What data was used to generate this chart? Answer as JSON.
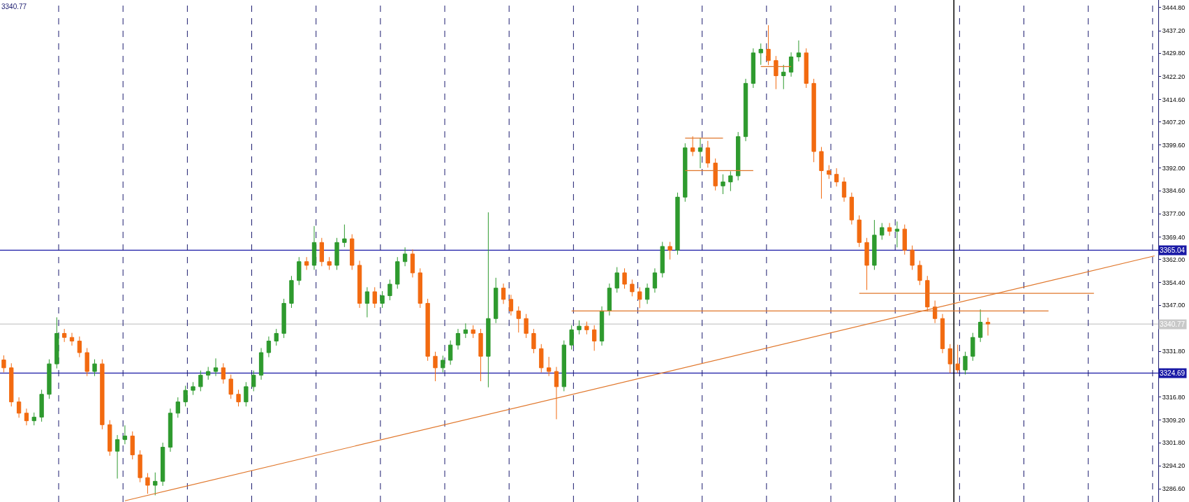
{
  "chart_data": {
    "type": "candlestick",
    "categories": [
      null,
      null,
      null,
      null,
      null,
      null,
      null,
      null,
      null,
      null,
      null,
      null,
      null,
      null,
      null,
      null,
      null,
      null,
      null,
      null,
      null,
      null,
      null,
      null,
      null,
      null,
      null,
      null,
      null,
      null,
      null,
      null,
      null,
      null,
      null,
      null,
      null,
      null,
      null,
      null,
      null,
      null,
      null,
      null,
      null,
      null,
      null,
      null,
      null,
      null,
      null,
      null,
      null,
      null,
      null,
      null,
      null,
      null,
      null,
      null,
      null,
      null,
      null,
      null,
      null,
      null,
      null,
      null,
      null,
      null,
      null,
      null,
      null,
      null,
      null,
      null,
      null,
      null,
      null,
      null,
      null,
      null,
      null,
      null,
      null,
      null,
      null,
      null,
      null,
      null,
      null,
      null,
      null,
      null,
      null,
      null,
      null,
      null,
      null,
      null,
      null,
      null,
      null,
      null,
      null,
      null,
      null,
      null,
      null,
      null,
      null,
      null,
      null,
      null,
      null,
      null,
      null,
      null,
      null,
      null,
      null,
      null,
      null,
      null,
      null,
      null,
      null,
      null,
      null,
      null,
      null,
      null,
      null,
      null,
      null,
      null,
      null,
      null,
      null,
      null,
      null,
      null,
      null,
      null,
      null,
      null,
      null,
      null,
      null,
      null,
      null,
      null,
      null
    ],
    "colors": [
      "#f26a10",
      "#f26a10",
      "#f26a10",
      "#f26a10",
      "#2e9a2e",
      "#2e9a2e",
      "#2e9a2e",
      "#2e9a2e",
      "#f26a10",
      "#f26a10",
      "#f26a10",
      "#f26a10",
      "#2e9a2e",
      "#f26a10",
      "#f26a10",
      "#2e9a2e",
      "#2e9a2e",
      "#f26a10",
      "#f26a10",
      "#f26a10",
      "#2e9a2e",
      "#2e9a2e",
      "#2e9a2e",
      "#2e9a2e",
      "#2e9a2e",
      "#2e9a2e",
      "#2e9a2e",
      "#2e9a2e",
      "#2e9a2e",
      "#f26a10",
      "#f26a10",
      "#f26a10",
      "#2e9a2e",
      "#2e9a2e",
      "#2e9a2e",
      "#2e9a2e",
      "#2e9a2e",
      "#2e9a2e",
      "#2e9a2e",
      "#2e9a2e",
      "#f26a10",
      "#2e9a2e",
      "#f26a10",
      "#f26a10",
      "#2e9a2e",
      "#2e9a2e",
      "#f26a10",
      "#f26a10",
      "#2e9a2e",
      "#f26a10",
      "#2e9a2e",
      "#2e9a2e",
      "#2e9a2e",
      "#2e9a2e",
      "#f26a10",
      "#f26a10",
      "#f26a10",
      "#f26a10",
      "#2e9a2e",
      "#2e9a2e",
      "#2e9a2e",
      "#2e9a2e",
      "#f26a10",
      "#f26a10",
      "#2e9a2e",
      "#2e9a2e",
      "#f26a10",
      "#f26a10",
      "#f26a10",
      "#f26a10",
      "#f26a10",
      "#f26a10",
      "#f26a10",
      "#f26a10",
      "#2e9a2e",
      "#2e9a2e",
      "#2e9a2e",
      "#f26a10",
      "#f26a10",
      "#2e9a2e",
      "#2e9a2e",
      "#2e9a2e",
      "#f26a10",
      "#f26a10",
      "#f26a10",
      "#2e9a2e",
      "#2e9a2e",
      "#2e9a2e",
      "#f26a10",
      "#2e9a2e",
      "#2e9a2e",
      "#f26a10",
      "#2e9a2e",
      "#f26a10",
      "#f26a10",
      "#2e9a2e",
      "#2e9a2e",
      "#2e9a2e",
      "#2e9a2e",
      "#2e9a2e",
      "#2e9a2e",
      "#f26a10",
      "#f26a10",
      "#2e9a2e",
      "#2e9a2e",
      "#2e9a2e",
      "#f26a10",
      "#f26a10",
      "#f26a10",
      "#f26a10",
      "#f26a10",
      "#f26a10",
      "#f26a10",
      "#f26a10",
      "#f26a10",
      "#2e9a2e",
      "#2e9a2e",
      "#f26a10",
      "#2e9a2e",
      "#f26a10",
      "#f26a10",
      "#f26a10",
      "#f26a10",
      "#f26a10",
      "#f26a10",
      "#f26a10",
      "#f26a10",
      "#2e9a2e",
      "#2e9a2e",
      "#2e9a2e",
      "#f26a10",
      null,
      null,
      null,
      null,
      null,
      null,
      null,
      null,
      null,
      null,
      null,
      null,
      null,
      null,
      null,
      null,
      null,
      null,
      null,
      null,
      null,
      null
    ],
    "ohlc": [
      [
        3329.0,
        3330.5,
        3324.9,
        3326.4
      ],
      [
        3326.4,
        3327.9,
        3313.7,
        3315.2
      ],
      [
        3315.2,
        3316.7,
        3310.0,
        3311.5
      ],
      [
        3311.5,
        3313.0,
        3307.5,
        3309.0
      ],
      [
        3309.0,
        3311.7,
        3307.5,
        3310.2
      ],
      [
        3310.2,
        3319.2,
        3308.7,
        3317.7
      ],
      [
        3317.7,
        3329.2,
        3316.2,
        3327.7
      ],
      [
        3327.7,
        3343.0,
        3326.2,
        3337.7
      ],
      [
        3337.7,
        3339.2,
        3334.9,
        3336.4
      ],
      [
        3336.4,
        3337.9,
        3333.7,
        3335.2
      ],
      [
        3335.2,
        3336.7,
        3329.9,
        3331.4
      ],
      [
        3331.4,
        3332.9,
        3323.7,
        3325.2
      ],
      [
        3325.2,
        3329.2,
        3323.7,
        3327.7
      ],
      [
        3327.7,
        3329.2,
        3306.2,
        3307.7
      ],
      [
        3307.7,
        3309.2,
        3297.5,
        3299.0
      ],
      [
        3299.0,
        3304.3,
        3290.0,
        3302.8
      ],
      [
        3302.8,
        3307.5,
        3301.3,
        3304.0
      ],
      [
        3304.0,
        3305.5,
        3296.3,
        3297.8
      ],
      [
        3297.8,
        3299.3,
        3288.8,
        3290.3
      ],
      [
        3290.3,
        3291.8,
        3285.0,
        3287.8
      ],
      [
        3287.8,
        3292.0,
        3284.5,
        3289.1
      ],
      [
        3289.1,
        3301.8,
        3287.6,
        3300.3
      ],
      [
        3300.3,
        3313.0,
        3298.8,
        3311.5
      ],
      [
        3311.5,
        3316.7,
        3310.0,
        3315.2
      ],
      [
        3315.2,
        3320.5,
        3313.7,
        3319.0
      ],
      [
        3319.0,
        3321.7,
        3317.5,
        3320.2
      ],
      [
        3320.2,
        3325.5,
        3318.7,
        3324.0
      ],
      [
        3324.0,
        3326.7,
        3322.5,
        3325.2
      ],
      [
        3325.2,
        3329.5,
        3323.7,
        3326.4
      ],
      [
        3326.4,
        3327.9,
        3321.2,
        3322.7
      ],
      [
        3322.7,
        3324.2,
        3316.2,
        3317.7
      ],
      [
        3317.7,
        3319.2,
        3313.7,
        3315.2
      ],
      [
        3315.2,
        3321.7,
        3313.7,
        3320.2
      ],
      [
        3320.2,
        3325.5,
        3318.7,
        3324.0
      ],
      [
        3324.0,
        3332.9,
        3322.5,
        3331.4
      ],
      [
        3331.4,
        3336.7,
        3329.9,
        3335.2
      ],
      [
        3335.2,
        3339.2,
        3333.7,
        3337.7
      ],
      [
        3337.7,
        3349.1,
        3336.2,
        3347.6
      ],
      [
        3347.6,
        3356.6,
        3346.1,
        3355.1
      ],
      [
        3355.1,
        3362.8,
        3353.6,
        3361.3
      ],
      [
        3361.3,
        3362.8,
        3358.6,
        3360.1
      ],
      [
        3360.1,
        3373.0,
        3358.6,
        3367.6
      ],
      [
        3367.6,
        3369.1,
        3359.8,
        3361.3
      ],
      [
        3361.3,
        3362.8,
        3358.6,
        3360.1
      ],
      [
        3360.1,
        3369.1,
        3358.6,
        3367.6
      ],
      [
        3367.6,
        3373.5,
        3366.1,
        3368.8
      ],
      [
        3368.8,
        3370.3,
        3358.6,
        3360.1
      ],
      [
        3360.1,
        3361.6,
        3346.1,
        3347.6
      ],
      [
        3347.6,
        3352.9,
        3343.0,
        3351.4
      ],
      [
        3351.4,
        3352.9,
        3346.1,
        3347.6
      ],
      [
        3347.6,
        3351.6,
        3346.1,
        3350.1
      ],
      [
        3350.1,
        3355.4,
        3348.6,
        3353.9
      ],
      [
        3353.9,
        3362.8,
        3352.4,
        3361.3
      ],
      [
        3361.3,
        3366.0,
        3359.8,
        3363.8
      ],
      [
        3363.8,
        3365.3,
        3356.1,
        3357.6
      ],
      [
        3357.6,
        3359.1,
        3346.1,
        3347.6
      ],
      [
        3347.6,
        3349.1,
        3328.7,
        3330.2
      ],
      [
        3330.2,
        3331.7,
        3322.0,
        3326.4
      ],
      [
        3326.4,
        3330.4,
        3324.9,
        3328.9
      ],
      [
        3328.9,
        3335.4,
        3327.4,
        3333.9
      ],
      [
        3333.9,
        3339.2,
        3332.4,
        3337.7
      ],
      [
        3337.7,
        3341.0,
        3336.2,
        3338.9
      ],
      [
        3338.9,
        3340.4,
        3336.2,
        3337.7
      ],
      [
        3337.7,
        3339.2,
        3322.0,
        3330.2
      ],
      [
        3330.2,
        3377.5,
        3320.0,
        3342.6
      ],
      [
        3342.6,
        3356.0,
        3341.1,
        3352.6
      ],
      [
        3352.6,
        3354.1,
        3347.4,
        3348.9
      ],
      [
        3348.9,
        3350.4,
        3343.6,
        3345.1
      ],
      [
        3345.1,
        3346.6,
        3338.0,
        3342.6
      ],
      [
        3342.6,
        3344.1,
        3336.2,
        3337.7
      ],
      [
        3337.7,
        3339.2,
        3331.2,
        3332.7
      ],
      [
        3332.7,
        3334.2,
        3324.9,
        3326.4
      ],
      [
        3326.4,
        3330.0,
        3323.7,
        3325.2
      ],
      [
        3325.2,
        3326.7,
        3309.5,
        3320.2
      ],
      [
        3320.2,
        3335.4,
        3318.7,
        3333.9
      ],
      [
        3333.9,
        3340.4,
        3332.4,
        3338.9
      ],
      [
        3338.9,
        3342.0,
        3337.4,
        3340.1
      ],
      [
        3340.1,
        3341.6,
        3337.4,
        3338.9
      ],
      [
        3338.9,
        3340.4,
        3332.0,
        3335.2
      ],
      [
        3335.2,
        3346.6,
        3333.7,
        3345.1
      ],
      [
        3345.1,
        3354.1,
        3343.6,
        3352.6
      ],
      [
        3352.6,
        3359.5,
        3351.1,
        3357.6
      ],
      [
        3357.6,
        3359.1,
        3352.4,
        3353.9
      ],
      [
        3353.9,
        3355.4,
        3349.9,
        3351.4
      ],
      [
        3351.4,
        3352.9,
        3346.0,
        3348.9
      ],
      [
        3348.9,
        3354.1,
        3347.4,
        3352.6
      ],
      [
        3352.6,
        3359.1,
        3351.1,
        3357.6
      ],
      [
        3357.6,
        3367.8,
        3356.1,
        3366.3
      ],
      [
        3366.3,
        3367.8,
        3362.0,
        3365.1
      ],
      [
        3365.1,
        3384.0,
        3363.6,
        3382.5
      ],
      [
        3382.5,
        3400.2,
        3381.0,
        3398.7
      ],
      [
        3398.7,
        3402.5,
        3396.0,
        3397.5
      ],
      [
        3397.5,
        3402.0,
        3392.0,
        3398.7
      ],
      [
        3398.7,
        3401.0,
        3392.2,
        3393.7
      ],
      [
        3393.7,
        3395.2,
        3384.7,
        3386.2
      ],
      [
        3386.2,
        3390.0,
        3383.5,
        3387.5
      ],
      [
        3387.5,
        3391.0,
        3384.5,
        3389.5
      ],
      [
        3389.5,
        3403.9,
        3388.0,
        3402.4
      ],
      [
        3402.4,
        3421.4,
        3400.9,
        3419.9
      ],
      [
        3419.9,
        3431.4,
        3418.4,
        3429.9
      ],
      [
        3429.9,
        3433.0,
        3426.0,
        3431.1
      ],
      [
        3431.1,
        3439.0,
        3425.9,
        3427.4
      ],
      [
        3427.4,
        3428.9,
        3418.0,
        3422.4
      ],
      [
        3422.4,
        3426.0,
        3418.0,
        3423.6
      ],
      [
        3423.6,
        3430.1,
        3422.1,
        3428.6
      ],
      [
        3428.6,
        3434.0,
        3427.1,
        3429.9
      ],
      [
        3429.9,
        3431.4,
        3418.4,
        3419.9
      ],
      [
        3419.9,
        3421.4,
        3394.0,
        3397.5
      ],
      [
        3397.5,
        3399.0,
        3382.0,
        3391.2
      ],
      [
        3391.2,
        3393.0,
        3388.5,
        3390.0
      ],
      [
        3390.0,
        3392.0,
        3386.0,
        3387.5
      ],
      [
        3387.5,
        3389.0,
        3381.0,
        3382.5
      ],
      [
        3382.5,
        3384.0,
        3373.5,
        3375.0
      ],
      [
        3375.0,
        3376.5,
        3366.1,
        3367.6
      ],
      [
        3367.6,
        3369.1,
        3352.0,
        3360.1
      ],
      [
        3360.1,
        3375.0,
        3358.6,
        3370.0
      ],
      [
        3370.0,
        3374.0,
        3368.5,
        3372.5
      ],
      [
        3372.5,
        3374.0,
        3369.8,
        3371.3
      ],
      [
        3371.3,
        3374.5,
        3366.0,
        3372.0
      ],
      [
        3372.0,
        3373.5,
        3363.6,
        3365.1
      ],
      [
        3365.1,
        3366.6,
        3358.6,
        3360.1
      ],
      [
        3360.1,
        3361.6,
        3353.6,
        3355.1
      ],
      [
        3355.1,
        3356.6,
        3344.9,
        3346.4
      ],
      [
        3346.4,
        3348.5,
        3341.1,
        3342.6
      ],
      [
        3342.6,
        3344.1,
        3331.2,
        3332.7
      ],
      [
        3332.7,
        3334.2,
        3324.7,
        3327.7
      ],
      [
        3327.7,
        3334.0,
        3324.7,
        3325.7
      ],
      [
        3325.7,
        3331.7,
        3324.2,
        3330.2
      ],
      [
        3330.2,
        3337.9,
        3328.7,
        3336.4
      ],
      [
        3336.4,
        3345.6,
        3334.9,
        3341.4
      ],
      [
        3341.4,
        3342.9,
        3337.0,
        3340.8
      ],
      null,
      null,
      null,
      null,
      null,
      null,
      null,
      null,
      null,
      null,
      null,
      null,
      null,
      null,
      null,
      null,
      null,
      null,
      null,
      null,
      null,
      null
    ],
    "series": [
      {
        "type": "line",
        "color": "#e0762a",
        "values": [
          null,
          null,
          null,
          null,
          null,
          null,
          null,
          null,
          null,
          null,
          null,
          null,
          null,
          null,
          null,
          null,
          3282.7,
          null,
          null,
          null,
          null,
          null,
          null,
          null,
          null,
          null,
          null,
          null,
          null,
          null,
          null,
          null,
          null,
          null,
          null,
          null,
          null,
          null,
          null,
          null,
          null,
          null,
          null,
          null,
          null,
          null,
          null,
          null,
          null,
          null,
          null,
          null,
          null,
          null,
          null,
          null,
          null,
          null,
          null,
          null,
          null,
          null,
          null,
          null,
          null,
          null,
          null,
          null,
          null,
          null,
          null,
          null,
          null,
          null,
          null,
          null,
          null,
          null,
          null,
          null,
          null,
          null,
          null,
          null,
          null,
          null,
          null,
          null,
          null,
          null,
          null,
          null,
          null,
          null,
          null,
          null,
          null,
          null,
          null,
          null,
          null,
          null,
          null,
          null,
          null,
          null,
          null,
          null,
          null,
          null,
          null,
          null,
          null,
          null,
          null,
          null,
          null,
          null,
          null,
          null,
          null,
          null,
          null,
          null,
          null,
          null,
          null,
          null,
          null,
          null,
          null,
          null,
          null,
          null,
          null,
          null,
          null,
          null,
          null,
          null,
          null,
          null,
          null,
          null,
          null,
          null,
          null,
          null,
          null,
          null,
          null,
          null,
          3363.2
        ]
      },
      {
        "type": "line",
        "color": "#e0762a",
        "values": [
          null,
          null,
          null,
          null,
          null,
          null,
          null,
          null,
          null,
          null,
          null,
          null,
          null,
          null,
          null,
          null,
          null,
          null,
          null,
          null,
          null,
          null,
          null,
          null,
          null,
          null,
          null,
          null,
          null,
          null,
          null,
          null,
          null,
          null,
          null,
          null,
          null,
          null,
          null,
          null,
          null,
          null,
          null,
          null,
          null,
          null,
          null,
          null,
          null,
          null,
          null,
          null,
          null,
          null,
          null,
          null,
          null,
          null,
          null,
          null,
          null,
          null,
          null,
          null,
          null,
          null,
          null,
          null,
          null,
          null,
          null,
          null,
          null,
          null,
          null,
          3345.1,
          null,
          null,
          null,
          null,
          null,
          null,
          null,
          null,
          null,
          null,
          null,
          null,
          null,
          null,
          null,
          null,
          null,
          null,
          null,
          null,
          null,
          null,
          null,
          null,
          null,
          null,
          null,
          null,
          null,
          null,
          null,
          null,
          null,
          null,
          null,
          null,
          null,
          null,
          null,
          null,
          null,
          null,
          null,
          null,
          null,
          null,
          null,
          null,
          null,
          null,
          null,
          null,
          null,
          null,
          null,
          null,
          null,
          null,
          null,
          null,
          null,
          null,
          3345.1,
          null,
          null,
          null,
          null,
          null,
          null,
          null,
          null,
          null,
          null,
          null,
          null,
          null,
          null
        ]
      },
      {
        "type": "line",
        "color": "#e0762a",
        "values": [
          null,
          null,
          null,
          null,
          null,
          null,
          null,
          null,
          null,
          null,
          null,
          null,
          null,
          null,
          null,
          null,
          null,
          null,
          null,
          null,
          null,
          null,
          null,
          null,
          null,
          null,
          null,
          null,
          null,
          null,
          null,
          null,
          null,
          null,
          null,
          null,
          null,
          null,
          null,
          null,
          null,
          null,
          null,
          null,
          null,
          null,
          null,
          null,
          null,
          null,
          null,
          null,
          null,
          null,
          null,
          null,
          null,
          null,
          null,
          null,
          null,
          null,
          null,
          null,
          null,
          null,
          null,
          null,
          null,
          null,
          null,
          null,
          null,
          null,
          null,
          null,
          null,
          null,
          null,
          null,
          null,
          null,
          null,
          null,
          null,
          null,
          null,
          null,
          null,
          null,
          null,
          null,
          null,
          null,
          null,
          null,
          null,
          null,
          null,
          null,
          null,
          null,
          null,
          null,
          null,
          null,
          null,
          null,
          null,
          null,
          null,
          null,
          null,
          3350.9,
          null,
          null,
          null,
          null,
          null,
          null,
          null,
          null,
          null,
          null,
          null,
          null,
          null,
          null,
          null,
          null,
          null,
          null,
          null,
          null,
          null,
          null,
          null,
          null,
          null,
          null,
          null,
          null,
          null,
          null,
          3350.9,
          null,
          null,
          null,
          null,
          null,
          null,
          null,
          null
        ]
      },
      {
        "type": "line",
        "color": "#e0762a",
        "values": [
          null,
          null,
          null,
          null,
          null,
          null,
          null,
          null,
          null,
          null,
          null,
          null,
          null,
          null,
          null,
          null,
          null,
          null,
          null,
          null,
          null,
          null,
          null,
          null,
          null,
          null,
          null,
          null,
          null,
          null,
          null,
          null,
          null,
          null,
          null,
          null,
          null,
          null,
          null,
          null,
          null,
          null,
          null,
          null,
          null,
          null,
          null,
          null,
          null,
          null,
          null,
          null,
          null,
          null,
          null,
          null,
          null,
          null,
          null,
          null,
          null,
          null,
          null,
          null,
          null,
          null,
          null,
          null,
          null,
          null,
          null,
          null,
          null,
          null,
          null,
          null,
          null,
          null,
          null,
          null,
          null,
          null,
          null,
          null,
          null,
          null,
          null,
          null,
          null,
          null,
          3401.9,
          null,
          null,
          null,
          null,
          3401.9,
          null,
          null,
          null,
          null,
          null,
          null,
          null,
          null,
          null,
          null,
          null,
          null,
          null,
          null,
          null,
          null,
          null,
          null,
          null,
          null,
          null,
          null,
          null,
          null,
          null,
          null,
          null,
          null,
          null,
          null,
          null,
          null,
          null,
          null,
          null,
          null,
          null,
          null,
          null,
          null,
          null,
          null,
          null,
          null,
          null,
          null,
          null,
          null,
          null,
          null,
          null,
          null,
          null,
          null,
          null,
          null,
          null
        ]
      },
      {
        "type": "line",
        "color": "#e0762a",
        "values": [
          null,
          null,
          null,
          null,
          null,
          null,
          null,
          null,
          null,
          null,
          null,
          null,
          null,
          null,
          null,
          null,
          null,
          null,
          null,
          null,
          null,
          null,
          null,
          null,
          null,
          null,
          null,
          null,
          null,
          null,
          null,
          null,
          null,
          null,
          null,
          null,
          null,
          null,
          null,
          null,
          null,
          null,
          null,
          null,
          null,
          null,
          null,
          null,
          null,
          null,
          null,
          null,
          null,
          null,
          null,
          null,
          null,
          null,
          null,
          null,
          null,
          null,
          null,
          null,
          null,
          null,
          null,
          null,
          null,
          null,
          null,
          null,
          null,
          null,
          null,
          null,
          null,
          null,
          null,
          null,
          null,
          null,
          null,
          null,
          null,
          null,
          null,
          null,
          null,
          null,
          3391.2,
          null,
          null,
          null,
          null,
          null,
          null,
          null,
          null,
          3391.2,
          null,
          null,
          null,
          null,
          null,
          null,
          null,
          null,
          null,
          null,
          null,
          null,
          null,
          null,
          null,
          null,
          null,
          null,
          null,
          null,
          null,
          null,
          null,
          null,
          null,
          null,
          null,
          null,
          null,
          null,
          null,
          null,
          null,
          null,
          null,
          null,
          null,
          null,
          null,
          null,
          null,
          null,
          null,
          null,
          null,
          null,
          null,
          null,
          null,
          null,
          null,
          null,
          null
        ]
      },
      {
        "type": "line",
        "color": "#e0762a",
        "values": [
          null,
          null,
          null,
          null,
          null,
          null,
          null,
          null,
          null,
          null,
          null,
          null,
          null,
          null,
          null,
          null,
          null,
          null,
          null,
          null,
          null,
          null,
          null,
          null,
          null,
          null,
          null,
          null,
          null,
          null,
          null,
          null,
          null,
          null,
          null,
          null,
          null,
          null,
          null,
          null,
          null,
          null,
          null,
          null,
          null,
          null,
          null,
          null,
          null,
          null,
          null,
          null,
          null,
          null,
          null,
          null,
          null,
          null,
          null,
          null,
          null,
          null,
          null,
          null,
          null,
          null,
          null,
          null,
          null,
          null,
          null,
          null,
          null,
          null,
          null,
          null,
          null,
          null,
          null,
          null,
          null,
          null,
          null,
          null,
          null,
          null,
          null,
          null,
          null,
          null,
          null,
          null,
          null,
          null,
          null,
          null,
          null,
          null,
          null,
          null,
          3425.4,
          null,
          null,
          null,
          3425.4,
          null,
          null,
          null,
          null,
          null,
          null,
          null,
          null,
          null,
          null,
          null,
          null,
          null,
          null,
          null,
          null,
          null,
          null,
          null,
          null,
          null,
          null,
          null,
          null,
          null,
          null,
          null,
          null,
          null,
          null,
          null,
          null,
          null,
          null,
          null,
          null,
          null,
          null,
          null,
          null,
          null,
          null,
          null,
          null,
          null,
          null,
          null,
          null
        ]
      }
    ],
    "ylim": [
      3282.3,
      3447.3
    ],
    "yticks": [
      {
        "value": 3444.8,
        "label": "3444.80"
      },
      {
        "value": 3437.2,
        "label": "3437.20"
      },
      {
        "value": 3429.8,
        "label": "3429.80"
      },
      {
        "value": 3422.2,
        "label": "3422.20"
      },
      {
        "value": 3414.6,
        "label": "3414.60"
      },
      {
        "value": 3407.2,
        "label": "3407.20"
      },
      {
        "value": 3399.6,
        "label": "3399.60"
      },
      {
        "value": 3392.0,
        "label": "3392.00"
      },
      {
        "value": 3384.6,
        "label": "3384.60"
      },
      {
        "value": 3377.0,
        "label": "3377.00"
      },
      {
        "value": 3369.4,
        "label": "3369.40"
      },
      {
        "value": 3362.0,
        "label": "3362.00"
      },
      {
        "value": 3354.4,
        "label": "3354.40"
      },
      {
        "value": 3347.0,
        "label": "3347.00"
      },
      {
        "value": 3331.8,
        "label": "3331.80"
      },
      {
        "value": 3316.8,
        "label": "3316.80"
      },
      {
        "value": 3309.2,
        "label": "3309.20"
      },
      {
        "value": 3301.8,
        "label": "3301.80"
      },
      {
        "value": 3294.2,
        "label": "3294.20"
      },
      {
        "value": 3286.6,
        "label": "3286.60"
      }
    ],
    "ref_lines": [
      {
        "axis": "y",
        "value": 3365.04,
        "label": "3365.04",
        "color": "#1a1aa6"
      },
      {
        "axis": "y",
        "value": 3324.69,
        "label": "3324.69",
        "color": "#1a1aa6"
      },
      {
        "axis": "y",
        "value": 3340.77,
        "label": "3340.77",
        "color": "#c8c8c8"
      }
    ],
    "annotations": [
      "3340.77"
    ],
    "grid": "x"
  }
}
